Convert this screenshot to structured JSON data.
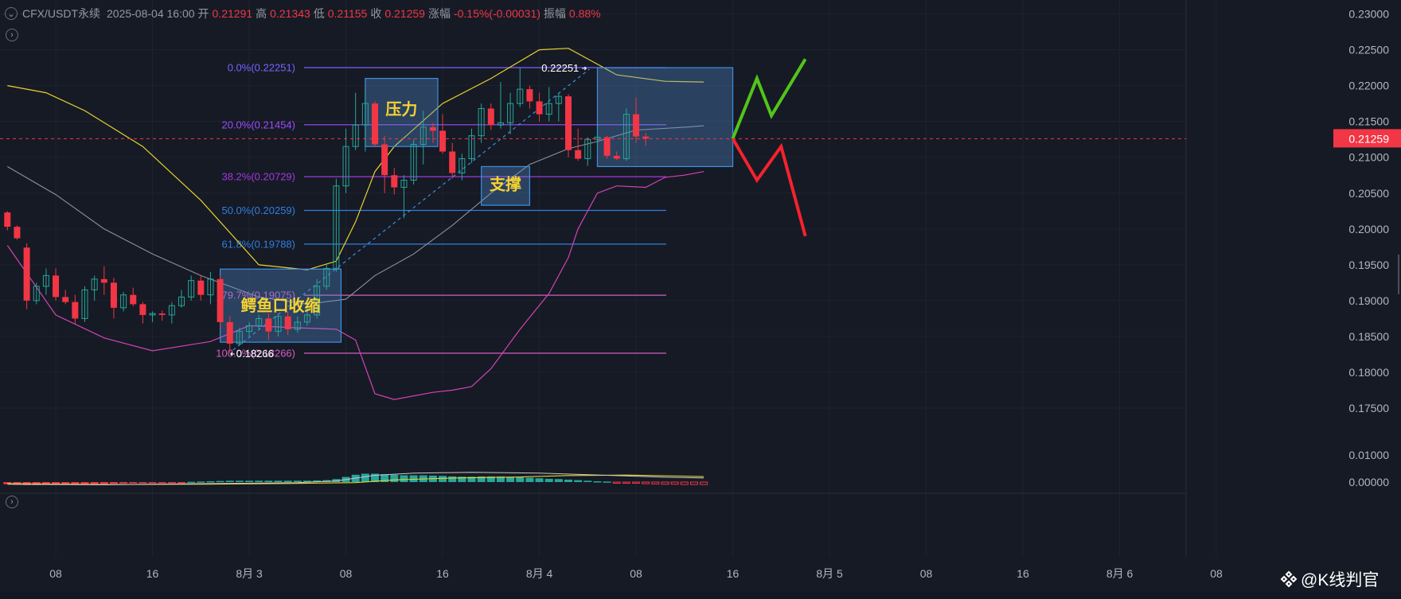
{
  "header": {
    "symbol": "CFX/USDT永续",
    "datetime": "2025-08-04 16:00",
    "open_label": "开",
    "open": "0.21291",
    "high_label": "高",
    "high": "0.21343",
    "low_label": "低",
    "low": "0.21155",
    "close_label": "收",
    "close": "0.21259",
    "change_label": "涨幅",
    "change": "-0.15%(-0.00031)",
    "amplitude_label": "振幅",
    "amplitude": "0.88%"
  },
  "toggle_icon": "chevron-circle-icon",
  "watermark": {
    "icon": "diamond-logo-icon",
    "text": "@K线判官"
  },
  "colors": {
    "up": "#26a69a",
    "down": "#f23645",
    "bg": "#161a25"
  },
  "chart_data": {
    "type": "candlestick",
    "symbol": "CFX/USDT永续",
    "interval": "4h",
    "price_axis": {
      "ticks": [
        "0.23000",
        "0.22500",
        "0.22000",
        "0.21500",
        "0.21000",
        "0.20500",
        "0.20000",
        "0.19500",
        "0.19000",
        "0.18500",
        "0.18000",
        "0.17500"
      ],
      "range": [
        0.1716,
        0.2311
      ]
    },
    "current_price": "0.21259",
    "time_axis": [
      {
        "label": "08",
        "i": 5
      },
      {
        "label": "16",
        "i": 15
      },
      {
        "label": "8月 3",
        "i": 25
      },
      {
        "label": "08",
        "i": 35
      },
      {
        "label": "16",
        "i": 45
      },
      {
        "label": "8月 4",
        "i": 55
      },
      {
        "label": "08",
        "i": 65
      },
      {
        "label": "16",
        "i": 75
      },
      {
        "label": "8月 5",
        "i": 85
      },
      {
        "label": "08",
        "i": 95
      },
      {
        "label": "16",
        "i": 105
      },
      {
        "label": "8月 6",
        "i": 115
      },
      {
        "label": "08",
        "i": 125
      }
    ],
    "candles": [
      [
        0.2023,
        0.2025,
        0.1998,
        0.2003
      ],
      [
        0.2003,
        0.2005,
        0.1985,
        0.1987
      ],
      [
        0.1974,
        0.198,
        0.1888,
        0.19
      ],
      [
        0.19,
        0.1925,
        0.1895,
        0.192
      ],
      [
        0.192,
        0.1945,
        0.1908,
        0.1935
      ],
      [
        0.1935,
        0.1945,
        0.19,
        0.1905
      ],
      [
        0.1905,
        0.1915,
        0.1895,
        0.1898
      ],
      [
        0.1898,
        0.1908,
        0.1868,
        0.1875
      ],
      [
        0.1875,
        0.192,
        0.187,
        0.1915
      ],
      [
        0.1915,
        0.1935,
        0.19,
        0.193
      ],
      [
        0.193,
        0.1948,
        0.1908,
        0.1925
      ],
      [
        0.1925,
        0.1932,
        0.1875,
        0.189
      ],
      [
        0.189,
        0.1912,
        0.1885,
        0.1908
      ],
      [
        0.1908,
        0.1918,
        0.1892,
        0.1895
      ],
      [
        0.1895,
        0.1898,
        0.1868,
        0.188
      ],
      [
        0.188,
        0.1885,
        0.187,
        0.1882
      ],
      [
        0.1882,
        0.1886,
        0.1872,
        0.188
      ],
      [
        0.188,
        0.1898,
        0.1868,
        0.1893
      ],
      [
        0.1893,
        0.1915,
        0.189,
        0.1905
      ],
      [
        0.1905,
        0.1935,
        0.19,
        0.1928
      ],
      [
        0.1928,
        0.1935,
        0.19,
        0.1908
      ],
      [
        0.1908,
        0.194,
        0.1895,
        0.193
      ],
      [
        0.193,
        0.1935,
        0.1862,
        0.187
      ],
      [
        0.187,
        0.1878,
        0.1827,
        0.184
      ],
      [
        0.184,
        0.1862,
        0.1838,
        0.1857
      ],
      [
        0.1857,
        0.187,
        0.185,
        0.1865
      ],
      [
        0.1865,
        0.188,
        0.186,
        0.1875
      ],
      [
        0.1875,
        0.1882,
        0.1845,
        0.1857
      ],
      [
        0.1857,
        0.1882,
        0.185,
        0.1878
      ],
      [
        0.1878,
        0.1885,
        0.1852,
        0.186
      ],
      [
        0.186,
        0.1878,
        0.1855,
        0.187
      ],
      [
        0.187,
        0.1895,
        0.1865,
        0.188
      ],
      [
        0.188,
        0.193,
        0.1875,
        0.192
      ],
      [
        0.192,
        0.195,
        0.1915,
        0.1945
      ],
      [
        0.1945,
        0.207,
        0.194,
        0.206
      ],
      [
        0.206,
        0.214,
        0.205,
        0.2115
      ],
      [
        0.2115,
        0.219,
        0.211,
        0.2145
      ],
      [
        0.2145,
        0.2195,
        0.2108,
        0.2175
      ],
      [
        0.2175,
        0.2178,
        0.2115,
        0.2118
      ],
      [
        0.2118,
        0.213,
        0.205,
        0.2075
      ],
      [
        0.2075,
        0.2085,
        0.2048,
        0.2058
      ],
      [
        0.2058,
        0.2075,
        0.2015,
        0.2068
      ],
      [
        0.2068,
        0.2125,
        0.2062,
        0.2118
      ],
      [
        0.2118,
        0.2165,
        0.209,
        0.2142
      ],
      [
        0.2142,
        0.2148,
        0.212,
        0.2137
      ],
      [
        0.2137,
        0.216,
        0.2105,
        0.2108
      ],
      [
        0.2108,
        0.212,
        0.207,
        0.2078
      ],
      [
        0.2078,
        0.2105,
        0.2068,
        0.2098
      ],
      [
        0.2098,
        0.214,
        0.2092,
        0.213
      ],
      [
        0.213,
        0.2175,
        0.212,
        0.2168
      ],
      [
        0.2168,
        0.2175,
        0.2138,
        0.2145
      ],
      [
        0.2145,
        0.2205,
        0.214,
        0.2148
      ],
      [
        0.2148,
        0.219,
        0.2132,
        0.2175
      ],
      [
        0.2175,
        0.2225,
        0.217,
        0.2195
      ],
      [
        0.2195,
        0.22,
        0.2168,
        0.2178
      ],
      [
        0.2178,
        0.219,
        0.215,
        0.216
      ],
      [
        0.216,
        0.2198,
        0.215,
        0.2175
      ],
      [
        0.2175,
        0.219,
        0.215,
        0.2185
      ],
      [
        0.2185,
        0.2188,
        0.21,
        0.211
      ],
      [
        0.211,
        0.214,
        0.2095,
        0.2098
      ],
      [
        0.2098,
        0.2128,
        0.2088,
        0.2125
      ],
      [
        0.2125,
        0.2135,
        0.211,
        0.2128
      ],
      [
        0.2128,
        0.213,
        0.2098,
        0.2102
      ],
      [
        0.2102,
        0.2108,
        0.2096,
        0.2098
      ],
      [
        0.2098,
        0.2168,
        0.2095,
        0.216
      ],
      [
        0.216,
        0.2183,
        0.212,
        0.2129
      ],
      [
        0.2129,
        0.2134,
        0.2116,
        0.2126
      ]
    ],
    "bollinger": {
      "upper": [
        [
          0,
          0.22
        ],
        [
          4,
          0.219
        ],
        [
          8,
          0.2165
        ],
        [
          14,
          0.2115
        ],
        [
          20,
          0.204
        ],
        [
          26,
          0.195
        ],
        [
          31,
          0.1943
        ],
        [
          34,
          0.1955
        ],
        [
          36,
          0.201
        ],
        [
          38,
          0.208
        ],
        [
          40,
          0.2115
        ],
        [
          45,
          0.2175
        ],
        [
          50,
          0.221
        ],
        [
          55,
          0.225
        ],
        [
          58,
          0.2252
        ],
        [
          61,
          0.223
        ],
        [
          63,
          0.2215
        ],
        [
          68,
          0.2206
        ],
        [
          72,
          0.2205
        ]
      ],
      "middle": [
        [
          0,
          0.2087
        ],
        [
          5,
          0.2048
        ],
        [
          10,
          0.2
        ],
        [
          15,
          0.1965
        ],
        [
          20,
          0.1935
        ],
        [
          26,
          0.1905
        ],
        [
          31,
          0.1895
        ],
        [
          35,
          0.1902
        ],
        [
          38,
          0.1935
        ],
        [
          42,
          0.1965
        ],
        [
          46,
          0.2005
        ],
        [
          50,
          0.205
        ],
        [
          54,
          0.209
        ],
        [
          58,
          0.2112
        ],
        [
          61,
          0.2122
        ],
        [
          65,
          0.2138
        ],
        [
          70,
          0.2142
        ],
        [
          72,
          0.2144
        ]
      ],
      "lower": [
        [
          0,
          0.1977
        ],
        [
          5,
          0.188
        ],
        [
          10,
          0.1848
        ],
        [
          15,
          0.183
        ],
        [
          21,
          0.1843
        ],
        [
          25,
          0.1865
        ],
        [
          30,
          0.1862
        ],
        [
          34,
          0.186
        ],
        [
          36,
          0.1845
        ],
        [
          38,
          0.177
        ],
        [
          40,
          0.1762
        ],
        [
          44,
          0.1772
        ],
        [
          46,
          0.1775
        ],
        [
          48,
          0.178
        ],
        [
          50,
          0.1805
        ],
        [
          53,
          0.186
        ],
        [
          56,
          0.191
        ],
        [
          58,
          0.196
        ],
        [
          59,
          0.2
        ],
        [
          61,
          0.205
        ],
        [
          63,
          0.206
        ],
        [
          66,
          0.2058
        ],
        [
          68,
          0.2072
        ],
        [
          70,
          0.2075
        ],
        [
          72,
          0.208
        ]
      ]
    },
    "fibonacci": [
      {
        "label": "0.0%(0.22251)",
        "price": 0.22251,
        "color": "#7b61ff"
      },
      {
        "label": "20.0%(0.21454)",
        "price": 0.21454,
        "color": "#9c4dff"
      },
      {
        "label": "38.2%(0.20729)",
        "price": 0.20729,
        "color": "#a238e0"
      },
      {
        "label": "50.0%(0.20259)",
        "price": 0.20259,
        "color": "#2f7fe0"
      },
      {
        "label": "61.8%(0.19788)",
        "price": 0.19788,
        "color": "#2f7fe0"
      },
      {
        "label": "79.7%(0.19075)",
        "price": 0.19075,
        "color": "#d25cc0"
      },
      {
        "label": "100.0%(0.18266)",
        "price": 0.18266,
        "color": "#d25cc0"
      }
    ],
    "swing_labels": [
      {
        "text": "0.22251",
        "i": 60,
        "price": 0.22251
      },
      {
        "text": "0.18266",
        "i": 23,
        "price": 0.18266
      }
    ],
    "annotation_boxes": [
      {
        "label": "压力",
        "i0": 37,
        "i1": 44.5,
        "p_top": 0.221,
        "p_bot": 0.2115
      },
      {
        "label": "支撑",
        "i0": 49,
        "i1": 54,
        "p_top": 0.2087,
        "p_bot": 0.2033
      },
      {
        "label": "鳄鱼口收缩",
        "i0": 22,
        "i1": 34.5,
        "p_top": 0.1944,
        "p_bot": 0.1842
      },
      {
        "label": "",
        "i0": 61,
        "i1": 75,
        "p_top": 0.2225,
        "p_bot": 0.2087
      }
    ],
    "scenario_paths": {
      "bullish": [
        [
          75,
          0.2126
        ],
        [
          77.5,
          0.221
        ],
        [
          79,
          0.2158
        ],
        [
          82.5,
          0.2237
        ]
      ],
      "bearish": [
        [
          75,
          0.2126
        ],
        [
          77.5,
          0.2068
        ],
        [
          80,
          0.2115
        ],
        [
          82.5,
          0.199
        ]
      ]
    },
    "macd": {
      "axis_ticks": [
        "0.01000",
        "0.00000"
      ],
      "hist": [
        -0.0008,
        -0.001,
        -0.0011,
        -0.0011,
        -0.001,
        -0.001,
        -0.0009,
        -0.0009,
        -0.0008,
        -0.0008,
        -0.0007,
        -0.0006,
        -0.0005,
        -0.0004,
        -0.0003,
        -0.0002,
        -0.0002,
        -0.0001,
        -5e-05,
        0.0001,
        0.0002,
        0.0003,
        0.0004,
        0.0005,
        0.0005,
        0.0005,
        0.0005,
        0.0005,
        0.0005,
        0.0005,
        0.0005,
        0.0005,
        0.0006,
        0.0007,
        0.0011,
        0.0019,
        0.0027,
        0.0031,
        0.0031,
        0.0029,
        0.0027,
        0.0025,
        0.0025,
        0.0025,
        0.0024,
        0.0023,
        0.0021,
        0.002,
        0.002,
        0.0021,
        0.0021,
        0.0021,
        0.002,
        0.0018,
        0.0016,
        0.0014,
        0.0012,
        0.0011,
        0.0009,
        0.0007,
        0.0005,
        0.0003,
        0.0002,
        -0.0001,
        -0.0003,
        -0.0004,
        -0.0006,
        -0.0007,
        -0.0008,
        -0.0008,
        -0.0009,
        -0.0009,
        -0.0009
      ],
      "dif": [
        [
          0,
          -0.0008
        ],
        [
          10,
          -0.001
        ],
        [
          20,
          -0.0006
        ],
        [
          30,
          -0.0002
        ],
        [
          34,
          0.0004
        ],
        [
          38,
          0.0025
        ],
        [
          42,
          0.0033
        ],
        [
          48,
          0.0036
        ],
        [
          55,
          0.0033
        ],
        [
          62,
          0.0025
        ],
        [
          68,
          0.0018
        ],
        [
          72,
          0.0015
        ]
      ],
      "dea": [
        [
          0,
          -0.0006
        ],
        [
          10,
          -0.0009
        ],
        [
          20,
          -0.0008
        ],
        [
          30,
          -0.0005
        ],
        [
          36,
          -0.0002
        ],
        [
          40,
          0.0008
        ],
        [
          46,
          0.0015
        ],
        [
          52,
          0.0018
        ],
        [
          58,
          0.0024
        ],
        [
          64,
          0.0026
        ],
        [
          70,
          0.0022
        ],
        [
          72,
          0.002
        ]
      ]
    }
  }
}
